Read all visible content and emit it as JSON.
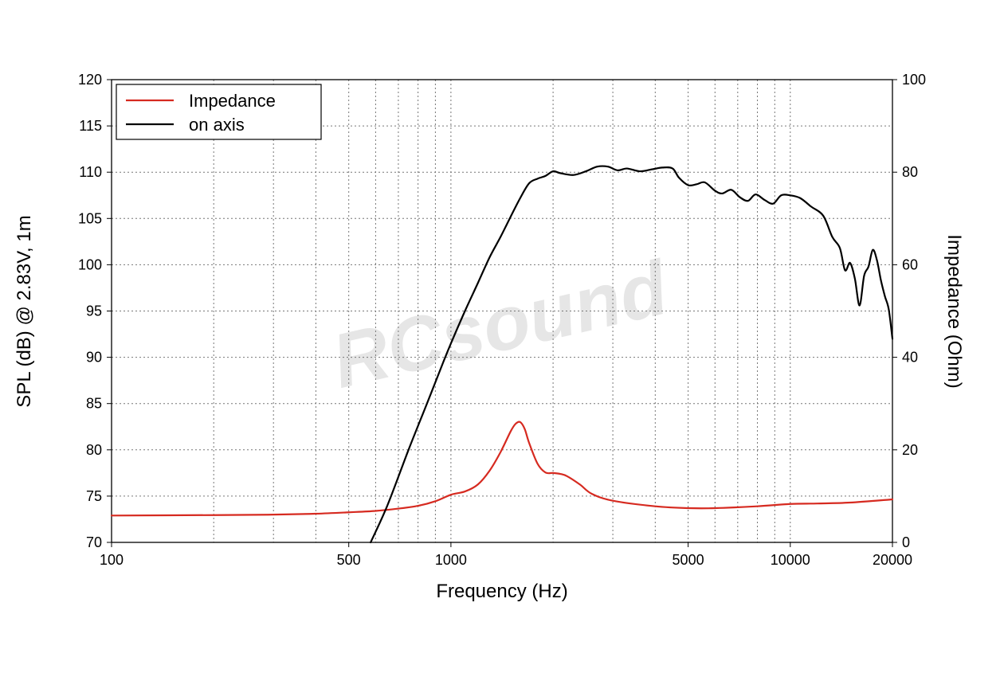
{
  "chart_data": {
    "type": "line",
    "xlabel": "Frequency (Hz)",
    "ylabel": "SPL (dB) @ 2.83V, 1m",
    "y2label": "Impedance (Ohm)",
    "x_scale": "log",
    "xlim": [
      100,
      20000
    ],
    "ylim": [
      70,
      120
    ],
    "y2lim": [
      0,
      100
    ],
    "x_ticks": [
      100,
      500,
      1000,
      5000,
      10000,
      20000
    ],
    "x_tick_labels": [
      "100",
      "500",
      "1000",
      "5000",
      "10000",
      "20000"
    ],
    "y_ticks": [
      70,
      75,
      80,
      85,
      90,
      95,
      100,
      105,
      110,
      115,
      120
    ],
    "y_tick_labels": [
      "70",
      "75",
      "80",
      "85",
      "90",
      "95",
      "100",
      "105",
      "110",
      "115",
      "120"
    ],
    "y2_ticks": [
      0,
      20,
      40,
      60,
      80,
      100
    ],
    "y2_tick_labels": [
      "0",
      "20",
      "40",
      "60",
      "80",
      "100"
    ],
    "grid": true,
    "legend_position": "top-left",
    "watermark": "RCsound",
    "series": [
      {
        "name": "Impedance",
        "axis": "right",
        "color": "#d62a20",
        "x": [
          100,
          200,
          300,
          400,
          500,
          600,
          700,
          800,
          900,
          1000,
          1100,
          1200,
          1300,
          1400,
          1500,
          1550,
          1600,
          1650,
          1700,
          1800,
          1900,
          2000,
          2100,
          2200,
          2400,
          2600,
          3000,
          4000,
          5000,
          6000,
          8000,
          10000,
          12000,
          15000,
          20000
        ],
        "y": [
          5.8,
          5.9,
          6.0,
          6.2,
          6.5,
          6.8,
          7.3,
          7.9,
          8.9,
          10.3,
          11.0,
          12.5,
          15.5,
          19.5,
          24.0,
          25.6,
          26.0,
          24.5,
          21.5,
          17.0,
          15.1,
          15.0,
          14.8,
          14.3,
          12.5,
          10.5,
          9.0,
          7.8,
          7.4,
          7.4,
          7.8,
          8.3,
          8.4,
          8.6,
          9.3
        ]
      },
      {
        "name": "on axis",
        "axis": "left",
        "color": "#000000",
        "x": [
          580,
          650,
          750,
          850,
          950,
          1000,
          1100,
          1200,
          1300,
          1400,
          1500,
          1600,
          1700,
          1800,
          1900,
          2000,
          2100,
          2300,
          2500,
          2700,
          2900,
          3100,
          3300,
          3600,
          3900,
          4200,
          4500,
          4700,
          5000,
          5300,
          5600,
          6000,
          6300,
          6700,
          7100,
          7500,
          7900,
          8400,
          8900,
          9400,
          10000,
          10700,
          11500,
          12500,
          13300,
          14000,
          14500,
          15000,
          15500,
          16000,
          16500,
          17000,
          17500,
          18000,
          18500,
          19000,
          19500,
          20000
        ],
        "y": [
          70.0,
          74.0,
          80.0,
          85.0,
          89.5,
          91.5,
          95.0,
          98.0,
          100.8,
          103.0,
          105.2,
          107.2,
          108.8,
          109.3,
          109.6,
          110.1,
          109.9,
          109.7,
          110.1,
          110.6,
          110.6,
          110.2,
          110.4,
          110.1,
          110.3,
          110.5,
          110.4,
          109.4,
          108.6,
          108.7,
          108.9,
          108.0,
          107.7,
          108.1,
          107.3,
          106.9,
          107.6,
          107.0,
          106.6,
          107.5,
          107.5,
          107.2,
          106.3,
          105.3,
          103.0,
          101.8,
          99.4,
          100.2,
          98.5,
          95.6,
          98.8,
          99.8,
          101.6,
          100.5,
          98.3,
          96.6,
          95.2,
          92.0
        ]
      }
    ]
  }
}
